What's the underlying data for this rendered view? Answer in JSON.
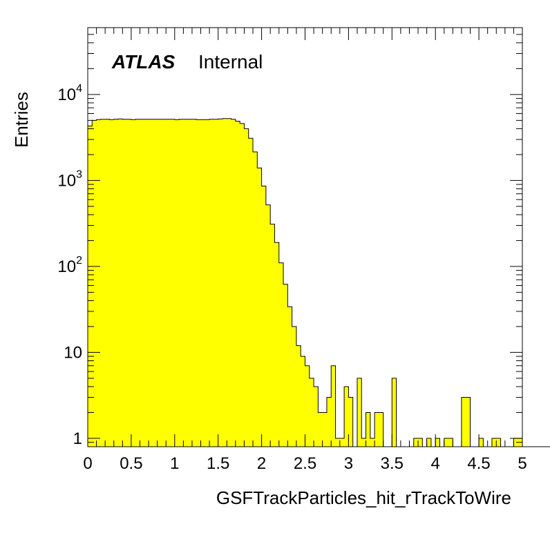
{
  "chart_data": {
    "type": "bar",
    "title": "",
    "label_bold": "ATLAS",
    "label_text": "Internal",
    "xlabel": "GSFTrackParticles_hit_rTrackToWire",
    "ylabel": "Entries",
    "xlim": [
      0,
      5
    ],
    "ylim": [
      0.8,
      60000
    ],
    "yscale": "log",
    "grid": false,
    "bin_width": 0.05,
    "x_ticks": [
      "0",
      "0.5",
      "1",
      "1.5",
      "2",
      "2.5",
      "3",
      "3.5",
      "4",
      "4.5",
      "5"
    ],
    "y_ticks": [
      {
        "value": 1,
        "label": "1",
        "exp": ""
      },
      {
        "value": 10,
        "label": "10",
        "exp": ""
      },
      {
        "value": 100,
        "label": "10",
        "exp": "2"
      },
      {
        "value": 1000,
        "label": "10",
        "exp": "3"
      },
      {
        "value": 10000,
        "label": "10",
        "exp": "4"
      }
    ],
    "fill_color": "#ffff00",
    "line_color": "#000000",
    "values": [
      4300,
      5000,
      5100,
      5150,
      5150,
      5100,
      5150,
      5200,
      5150,
      5150,
      5100,
      5150,
      5150,
      5150,
      5150,
      5150,
      5150,
      5150,
      5150,
      5150,
      5100,
      5150,
      5150,
      5150,
      5150,
      5100,
      5100,
      5100,
      5150,
      5150,
      5200,
      5250,
      5250,
      5150,
      4900,
      4600,
      4000,
      3100,
      2150,
      1400,
      860,
      520,
      310,
      190,
      110,
      62,
      34,
      20,
      12,
      9,
      7,
      5,
      4,
      2,
      2,
      3,
      7,
      1,
      1,
      4,
      3,
      0,
      5,
      1,
      2,
      1,
      2,
      2,
      0,
      0,
      5,
      0,
      0,
      0,
      0,
      1,
      1,
      0,
      1,
      0,
      1,
      0,
      1,
      1,
      0,
      0,
      3,
      3,
      0,
      0,
      1,
      0,
      0,
      1,
      1,
      0,
      0,
      0,
      1,
      1,
      0,
      0,
      0,
      0,
      0,
      0,
      0,
      0,
      0,
      0,
      0,
      0,
      0,
      0,
      0,
      0,
      0,
      0,
      0,
      0,
      0
    ]
  }
}
